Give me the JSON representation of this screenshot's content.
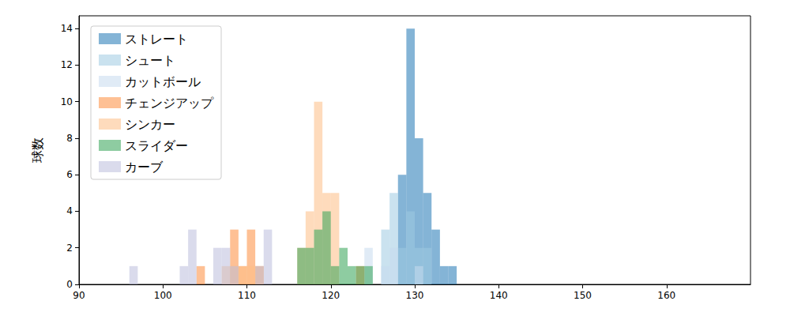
{
  "chart_data": {
    "type": "histogram",
    "y_label": "球数",
    "bins": [
      95,
      96,
      97,
      98,
      99,
      100,
      101,
      102,
      103,
      104,
      105,
      106,
      107,
      108,
      109,
      110,
      111,
      112,
      113,
      114,
      115,
      116,
      117,
      118,
      119,
      120,
      121,
      122,
      123,
      124,
      125,
      126,
      127,
      128,
      129,
      130,
      131,
      132,
      133,
      134,
      135,
      136
    ],
    "series": [
      {
        "name": "ストレート",
        "color": "#1f77b4",
        "values": [
          0,
          0,
          0,
          0,
          0,
          0,
          0,
          0,
          0,
          0,
          0,
          0,
          0,
          0,
          0,
          0,
          0,
          0,
          0,
          0,
          0,
          0,
          0,
          0,
          0,
          0,
          0,
          0,
          0,
          0,
          0,
          0,
          0,
          6,
          14,
          8,
          5,
          3,
          1,
          1,
          0
        ]
      },
      {
        "name": "シュート",
        "color": "#9ecae1",
        "values": [
          0,
          0,
          0,
          0,
          0,
          0,
          0,
          0,
          0,
          0,
          0,
          0,
          0,
          0,
          0,
          0,
          0,
          0,
          0,
          0,
          0,
          0,
          0,
          0,
          0,
          0,
          0,
          0,
          0,
          0,
          0,
          3,
          5,
          2,
          4,
          2,
          2,
          0,
          0,
          0,
          0
        ]
      },
      {
        "name": "カットボール",
        "color": "#c6dbef",
        "values": [
          0,
          0,
          0,
          0,
          0,
          0,
          0,
          0,
          0,
          0,
          0,
          0,
          0,
          0,
          0,
          0,
          0,
          0,
          0,
          0,
          0,
          0,
          0,
          0,
          0,
          0,
          0,
          0,
          0,
          2,
          0,
          1,
          2,
          0,
          0,
          1,
          0,
          0,
          0,
          0,
          0
        ]
      },
      {
        "name": "チェンジアップ",
        "color": "#fd8d3c",
        "values": [
          0,
          0,
          0,
          0,
          0,
          0,
          0,
          0,
          0,
          1,
          0,
          0,
          0,
          3,
          1,
          3,
          1,
          0,
          0,
          0,
          0,
          0,
          0,
          0,
          0,
          0,
          0,
          0,
          1,
          0,
          0,
          0,
          0,
          0,
          0,
          0,
          0,
          0,
          0,
          0,
          0
        ]
      },
      {
        "name": "シンカー",
        "color": "#fdbe85",
        "values": [
          0,
          0,
          0,
          0,
          0,
          0,
          0,
          0,
          0,
          0,
          0,
          0,
          1,
          1,
          1,
          1,
          1,
          0,
          0,
          0,
          0,
          2,
          4,
          10,
          5,
          5,
          0,
          0,
          0,
          0,
          0,
          0,
          0,
          0,
          0,
          0,
          0,
          0,
          0,
          0,
          0
        ]
      },
      {
        "name": "スライダー",
        "color": "#31a354",
        "values": [
          0,
          0,
          0,
          0,
          0,
          0,
          0,
          0,
          0,
          0,
          0,
          0,
          0,
          0,
          0,
          0,
          0,
          0,
          0,
          0,
          0,
          2,
          2,
          3,
          4,
          1,
          2,
          1,
          1,
          1,
          0,
          0,
          0,
          0,
          0,
          0,
          0,
          0,
          0,
          0,
          0
        ]
      },
      {
        "name": "カーブ",
        "color": "#bcbddc",
        "values": [
          0,
          1,
          0,
          0,
          0,
          0,
          0,
          1,
          3,
          0,
          0,
          2,
          2,
          1,
          0,
          0,
          1,
          3,
          0,
          0,
          0,
          0,
          0,
          0,
          0,
          0,
          0,
          0,
          0,
          0,
          0,
          0,
          0,
          0,
          0,
          0,
          0,
          0,
          0,
          0,
          0
        ]
      }
    ],
    "xlim": [
      90,
      170
    ],
    "xticks": [
      90,
      100,
      110,
      120,
      130,
      140,
      150,
      160
    ],
    "ylim": [
      0,
      14.7
    ],
    "yticks": [
      0,
      2,
      4,
      6,
      8,
      10,
      12,
      14
    ],
    "legend": "upper left",
    "grid": false
  }
}
